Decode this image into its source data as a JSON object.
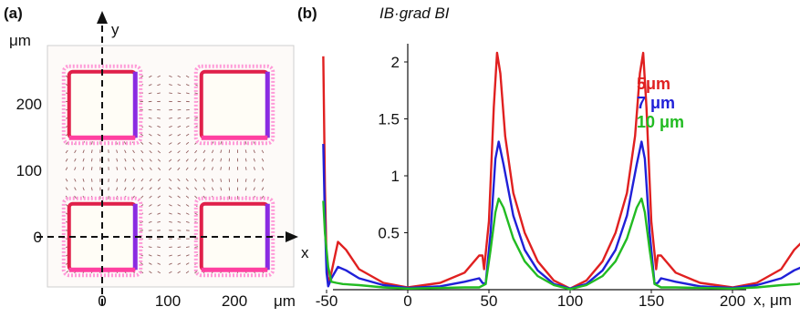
{
  "panel_a": {
    "label": "(a)",
    "unit_top": "μm",
    "unit_bottom": "μm",
    "x_axis_label": "x",
    "y_axis_label": "y",
    "x_ticks": [
      "0",
      "100",
      "200"
    ],
    "y_ticks": [
      "0",
      "100",
      "200"
    ]
  },
  "panel_b": {
    "label": "(b)",
    "y_title": "IB·grad BI",
    "x_axis_label": "x, μm",
    "x_ticks": [
      "-50",
      "0",
      "50",
      "100",
      "150",
      "200",
      "250"
    ],
    "y_ticks": [
      "0.5",
      "1",
      "1.5",
      "2"
    ]
  },
  "colors": {
    "red": "#e02020",
    "blue": "#2020d8",
    "green": "#22bb22"
  },
  "chart_data": [
    {
      "type": "heatmap",
      "description_of_content": "vector field of magnetic gradient around four square magnets",
      "xlim": [
        -60,
        260
      ],
      "ylim": [
        -60,
        260
      ],
      "magnets": [
        {
          "x": [
            -50,
            50
          ],
          "y": [
            150,
            250
          ]
        },
        {
          "x": [
            150,
            250
          ],
          "y": [
            150,
            250
          ]
        },
        {
          "x": [
            -50,
            50
          ],
          "y": [
            -50,
            50
          ]
        },
        {
          "x": [
            150,
            250
          ],
          "y": [
            -50,
            50
          ]
        }
      ]
    },
    {
      "type": "line",
      "xlim": [
        -55,
        260
      ],
      "ylim": [
        0,
        2.15
      ],
      "x_ticks": [
        -50,
        0,
        50,
        100,
        150,
        200,
        250
      ],
      "y_ticks": [
        0.5,
        1,
        1.5,
        2
      ],
      "series": [
        {
          "name": "5μm",
          "color": "#e02020",
          "points": [
            [
              -52,
              2.05
            ],
            [
              -51,
              0.9
            ],
            [
              -50,
              0.25
            ],
            [
              -49,
              0.05
            ],
            [
              -47,
              0.15
            ],
            [
              -43,
              0.42
            ],
            [
              -38,
              0.35
            ],
            [
              -30,
              0.18
            ],
            [
              -15,
              0.06
            ],
            [
              0,
              0.02
            ],
            [
              20,
              0.06
            ],
            [
              35,
              0.15
            ],
            [
              44,
              0.3
            ],
            [
              46,
              0.3
            ],
            [
              47,
              0.18
            ],
            [
              50,
              0.6
            ],
            [
              53,
              1.6
            ],
            [
              55,
              2.08
            ],
            [
              57,
              1.9
            ],
            [
              60,
              1.35
            ],
            [
              65,
              0.85
            ],
            [
              72,
              0.5
            ],
            [
              80,
              0.25
            ],
            [
              90,
              0.08
            ],
            [
              100,
              0.01
            ],
            [
              110,
              0.08
            ],
            [
              120,
              0.25
            ],
            [
              128,
              0.5
            ],
            [
              135,
              0.85
            ],
            [
              140,
              1.35
            ],
            [
              143,
              1.9
            ],
            [
              145,
              2.08
            ],
            [
              147,
              1.6
            ],
            [
              150,
              0.6
            ],
            [
              153,
              0.18
            ],
            [
              154,
              0.3
            ],
            [
              156,
              0.3
            ],
            [
              165,
              0.15
            ],
            [
              180,
              0.06
            ],
            [
              200,
              0.02
            ],
            [
              215,
              0.06
            ],
            [
              230,
              0.18
            ],
            [
              238,
              0.35
            ],
            [
              243,
              0.42
            ],
            [
              247,
              0.15
            ],
            [
              249,
              0.05
            ],
            [
              250,
              0.25
            ],
            [
              251,
              0.9
            ],
            [
              252,
              2.05
            ]
          ]
        },
        {
          "name": "7 μm",
          "color": "#2020d8",
          "points": [
            [
              -52,
              1.28
            ],
            [
              -51,
              0.6
            ],
            [
              -50,
              0.15
            ],
            [
              -49,
              0.03
            ],
            [
              -47,
              0.1
            ],
            [
              -43,
              0.2
            ],
            [
              -38,
              0.17
            ],
            [
              -30,
              0.1
            ],
            [
              -15,
              0.04
            ],
            [
              0,
              0.015
            ],
            [
              20,
              0.03
            ],
            [
              35,
              0.07
            ],
            [
              44,
              0.1
            ],
            [
              46,
              0.06
            ],
            [
              48,
              0.05
            ],
            [
              51,
              0.5
            ],
            [
              54,
              1.15
            ],
            [
              56,
              1.3
            ],
            [
              59,
              1.1
            ],
            [
              65,
              0.65
            ],
            [
              72,
              0.35
            ],
            [
              80,
              0.17
            ],
            [
              90,
              0.05
            ],
            [
              100,
              0.01
            ],
            [
              110,
              0.05
            ],
            [
              120,
              0.17
            ],
            [
              128,
              0.35
            ],
            [
              135,
              0.65
            ],
            [
              141,
              1.1
            ],
            [
              144,
              1.3
            ],
            [
              146,
              1.15
            ],
            [
              149,
              0.5
            ],
            [
              152,
              0.05
            ],
            [
              154,
              0.06
            ],
            [
              156,
              0.1
            ],
            [
              165,
              0.07
            ],
            [
              180,
              0.03
            ],
            [
              200,
              0.015
            ],
            [
              215,
              0.04
            ],
            [
              230,
              0.1
            ],
            [
              238,
              0.17
            ],
            [
              243,
              0.2
            ],
            [
              247,
              0.1
            ],
            [
              249,
              0.03
            ],
            [
              250,
              0.15
            ],
            [
              251,
              0.6
            ],
            [
              252,
              1.28
            ]
          ]
        },
        {
          "name": "10 μm",
          "color": "#22bb22",
          "points": [
            [
              -52,
              0.78
            ],
            [
              -51,
              0.5
            ],
            [
              -49,
              0.2
            ],
            [
              -47,
              0.07
            ],
            [
              -44,
              0.06
            ],
            [
              -40,
              0.05
            ],
            [
              -30,
              0.04
            ],
            [
              -15,
              0.02
            ],
            [
              0,
              0.01
            ],
            [
              20,
              0.015
            ],
            [
              35,
              0.02
            ],
            [
              44,
              0.02
            ],
            [
              48,
              0.05
            ],
            [
              51,
              0.35
            ],
            [
              54,
              0.68
            ],
            [
              56,
              0.8
            ],
            [
              59,
              0.72
            ],
            [
              65,
              0.45
            ],
            [
              72,
              0.25
            ],
            [
              80,
              0.12
            ],
            [
              90,
              0.04
            ],
            [
              100,
              0.005
            ],
            [
              110,
              0.04
            ],
            [
              120,
              0.12
            ],
            [
              128,
              0.25
            ],
            [
              135,
              0.45
            ],
            [
              141,
              0.72
            ],
            [
              144,
              0.8
            ],
            [
              146,
              0.68
            ],
            [
              149,
              0.35
            ],
            [
              152,
              0.05
            ],
            [
              156,
              0.02
            ],
            [
              165,
              0.02
            ],
            [
              180,
              0.015
            ],
            [
              200,
              0.01
            ],
            [
              215,
              0.02
            ],
            [
              230,
              0.04
            ],
            [
              240,
              0.05
            ],
            [
              244,
              0.06
            ],
            [
              247,
              0.07
            ],
            [
              249,
              0.2
            ],
            [
              251,
              0.5
            ],
            [
              252,
              0.78
            ]
          ]
        }
      ]
    }
  ]
}
